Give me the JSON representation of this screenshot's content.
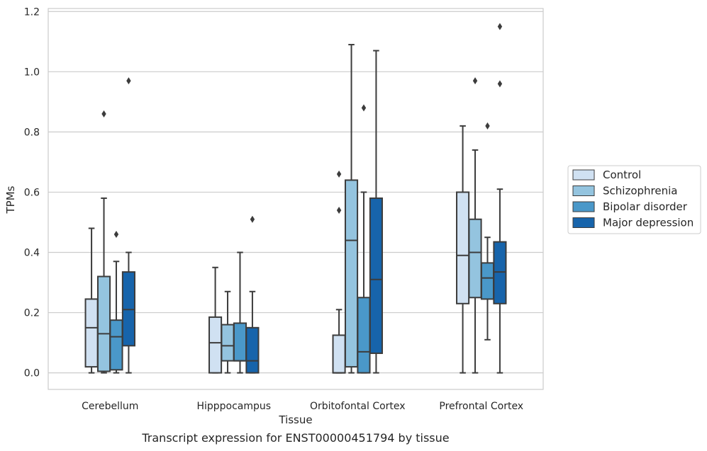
{
  "chart_data": {
    "type": "box",
    "title": "",
    "caption": "Transcript expression for ENST00000451794 by tissue",
    "xlabel": "Tissue",
    "ylabel": "TPMs",
    "ylim": [
      -0.055,
      1.21
    ],
    "yticks": [
      "0.0",
      "0.2",
      "0.4",
      "0.6",
      "0.8",
      "1.0",
      "1.2"
    ],
    "grid": "horizontal",
    "legend_position": "right",
    "categories": [
      "Cerebellum",
      "Hipppocampus",
      "Orbitofontal Cortex",
      "Prefrontal Cortex"
    ],
    "series": [
      {
        "name": "Control",
        "color": "#d0e1f2",
        "boxes": [
          {
            "whislo": 0.0,
            "q1": 0.02,
            "med": 0.15,
            "q3": 0.245,
            "whishi": 0.48,
            "fliers": []
          },
          {
            "whislo": 0.0,
            "q1": 0.0,
            "med": 0.1,
            "q3": 0.185,
            "whishi": 0.35,
            "fliers": []
          },
          {
            "whislo": 0.0,
            "q1": 0.0,
            "med": 0.0,
            "q3": 0.125,
            "whishi": 0.21,
            "fliers": [
              0.54,
              0.66
            ]
          },
          {
            "whislo": 0.0,
            "q1": 0.23,
            "med": 0.39,
            "q3": 0.6,
            "whishi": 0.82,
            "fliers": []
          }
        ]
      },
      {
        "name": "Schizophrenia",
        "color": "#94c4df",
        "boxes": [
          {
            "whislo": 0.0,
            "q1": 0.005,
            "med": 0.13,
            "q3": 0.32,
            "whishi": 0.58,
            "fliers": [
              0.86
            ]
          },
          {
            "whislo": 0.0,
            "q1": 0.04,
            "med": 0.09,
            "q3": 0.16,
            "whishi": 0.27,
            "fliers": []
          },
          {
            "whislo": 0.0,
            "q1": 0.02,
            "med": 0.44,
            "q3": 0.64,
            "whishi": 1.09,
            "fliers": []
          },
          {
            "whislo": 0.0,
            "q1": 0.25,
            "med": 0.4,
            "q3": 0.51,
            "whishi": 0.74,
            "fliers": [
              0.97
            ]
          }
        ]
      },
      {
        "name": "Bipolar disorder",
        "color": "#4a98c9",
        "boxes": [
          {
            "whislo": 0.0,
            "q1": 0.01,
            "med": 0.12,
            "q3": 0.175,
            "whishi": 0.37,
            "fliers": [
              0.46
            ]
          },
          {
            "whislo": 0.0,
            "q1": 0.04,
            "med": 0.04,
            "q3": 0.165,
            "whishi": 0.4,
            "fliers": []
          },
          {
            "whislo": 0.0,
            "q1": 0.0,
            "med": 0.07,
            "q3": 0.25,
            "whishi": 0.6,
            "fliers": [
              0.88
            ]
          },
          {
            "whislo": 0.11,
            "q1": 0.245,
            "med": 0.315,
            "q3": 0.365,
            "whishi": 0.45,
            "fliers": [
              0.82
            ]
          }
        ]
      },
      {
        "name": "Major depression",
        "color": "#1764ab",
        "boxes": [
          {
            "whislo": 0.0,
            "q1": 0.09,
            "med": 0.21,
            "q3": 0.335,
            "whishi": 0.4,
            "fliers": [
              0.97
            ]
          },
          {
            "whislo": 0.0,
            "q1": 0.0,
            "med": 0.04,
            "q3": 0.15,
            "whishi": 0.27,
            "fliers": [
              0.51
            ]
          },
          {
            "whislo": 0.0,
            "q1": 0.065,
            "med": 0.31,
            "q3": 0.58,
            "whishi": 1.07,
            "fliers": []
          },
          {
            "whislo": 0.0,
            "q1": 0.23,
            "med": 0.335,
            "q3": 0.435,
            "whishi": 0.61,
            "fliers": [
              0.96,
              1.15
            ]
          }
        ]
      }
    ]
  }
}
